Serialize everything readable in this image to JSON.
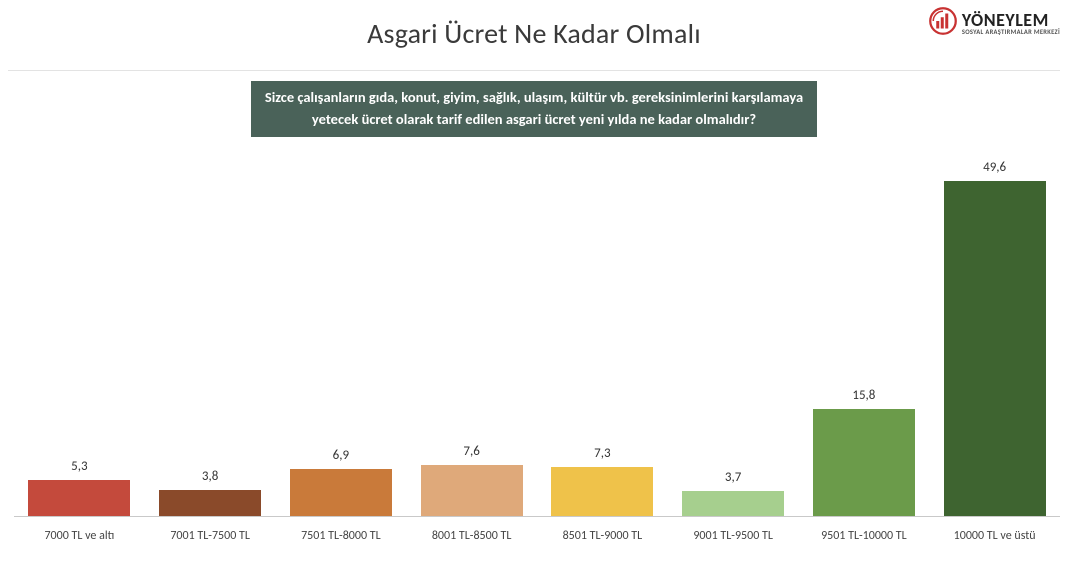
{
  "title": "Asgari Ücret Ne Kadar Olmalı",
  "subtitle_line1": "Sizce çalışanların gıda, konut, giyim, sağlık, ulaşım, kültür vb. gereksinimlerini karşılamaya",
  "subtitle_line2": "yetecek ücret olarak tarif edilen asgari ücret yeni yılda ne kadar olmalıdır?",
  "logo": {
    "main": "YÖNEYLEM",
    "sub": "SOSYAL ARAŞTIRMALAR MERKEZİ",
    "accent": "#c83232",
    "dark": "#222222"
  },
  "chart": {
    "type": "bar",
    "ymax": 55,
    "categories": [
      "7000 TL ve altı",
      "7001 TL-7500 TL",
      "7501 TL-8000 TL",
      "8001 TL-8500 TL",
      "8501 TL-9000 TL",
      "9001 TL-9500 TL",
      "9501 TL-10000 TL",
      "10000 TL ve üstü"
    ],
    "values": [
      5.3,
      3.8,
      6.9,
      7.6,
      7.3,
      3.7,
      15.8,
      49.6
    ],
    "value_labels": [
      "5,3",
      "3,8",
      "6,9",
      "7,6",
      "7,3",
      "3,7",
      "15,8",
      "49,6"
    ],
    "bar_colors": [
      "#c44a3c",
      "#8a4a2a",
      "#c97a3a",
      "#dfa97a",
      "#efc24a",
      "#a6cf8e",
      "#6b9b4a",
      "#3e6430"
    ],
    "background_color": "#ffffff",
    "axis_color": "#c9c9c9",
    "label_fontsize": 12,
    "value_fontsize": 13,
    "bar_width": 0.78
  }
}
